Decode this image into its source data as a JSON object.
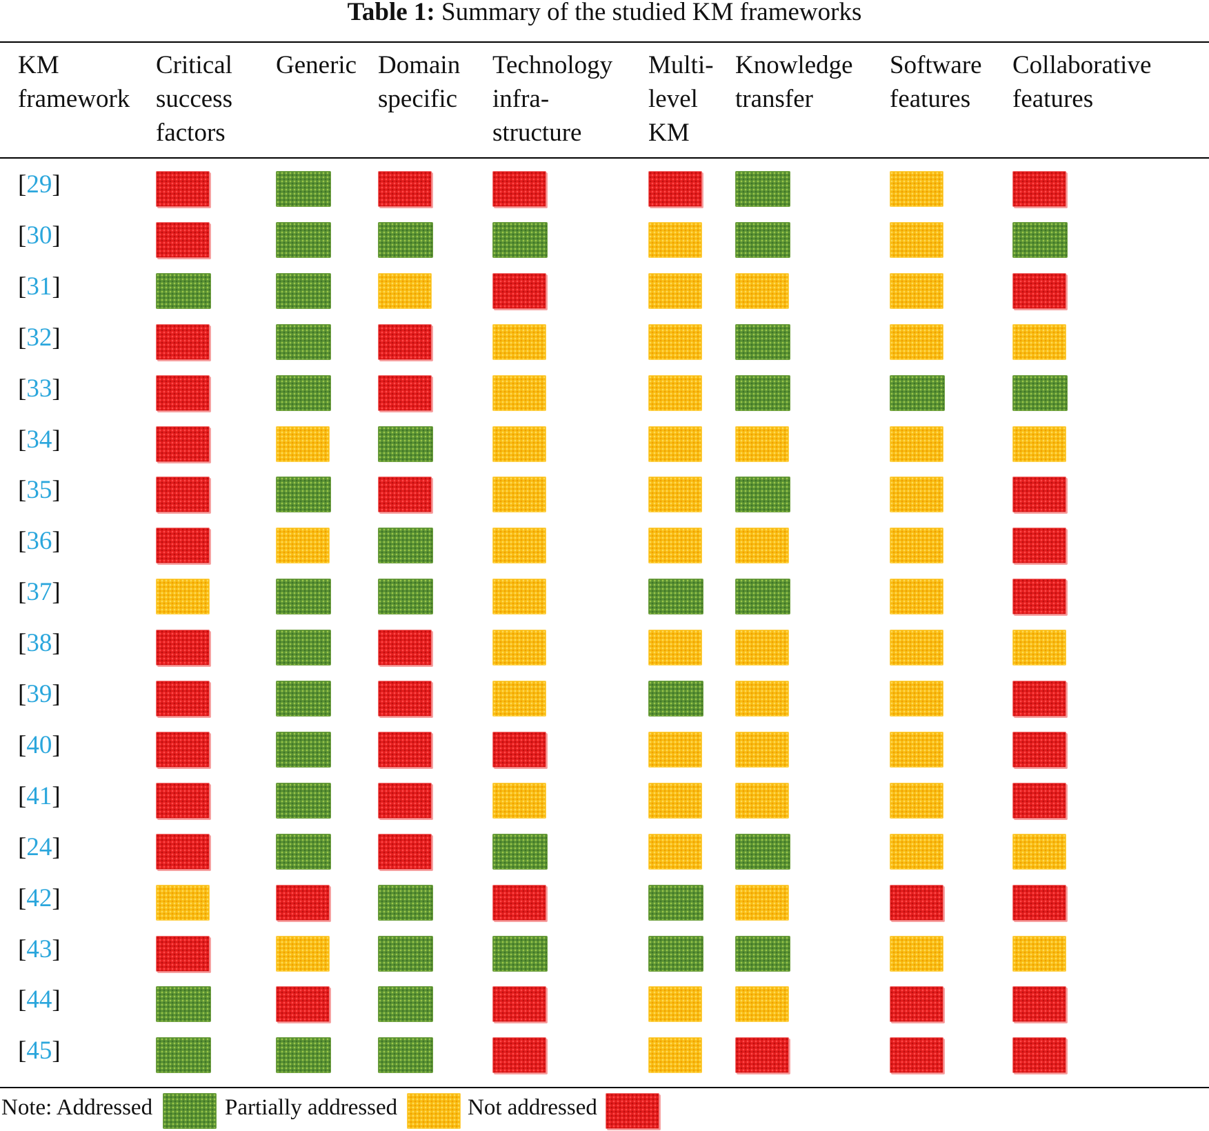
{
  "caption": {
    "label": "Table 1:",
    "text": "Summary of the studied KM frameworks"
  },
  "headers": [
    [
      "KM",
      "framework"
    ],
    [
      "Critical",
      "success",
      "factors"
    ],
    [
      "Generic"
    ],
    [
      "Domain",
      "specific"
    ],
    [
      "Technology",
      "infra-",
      "structure"
    ],
    [
      "Multi-",
      "level",
      "KM"
    ],
    [
      "Knowledge",
      "transfer"
    ],
    [
      "Software",
      "features"
    ],
    [
      "Collaborative",
      "features"
    ]
  ],
  "status_legend": {
    "A": "Addressed",
    "P": "Partially addressed",
    "N": "Not addressed"
  },
  "colors": {
    "addressed": "#5a9234",
    "partially_addressed": "#f9bd13",
    "not_addressed": "#e41d1d",
    "ref_link": "#2aa6dc"
  },
  "rows": [
    {
      "ref": "29",
      "cells": [
        "N",
        "A",
        "N",
        "N",
        "N",
        "A",
        "P",
        "N"
      ]
    },
    {
      "ref": "30",
      "cells": [
        "N",
        "A",
        "A",
        "A",
        "P",
        "A",
        "P",
        "A"
      ]
    },
    {
      "ref": "31",
      "cells": [
        "A",
        "A",
        "P",
        "N",
        "P",
        "P",
        "P",
        "N"
      ]
    },
    {
      "ref": "32",
      "cells": [
        "N",
        "A",
        "N",
        "P",
        "P",
        "A",
        "P",
        "P"
      ]
    },
    {
      "ref": "33",
      "cells": [
        "N",
        "A",
        "N",
        "P",
        "P",
        "A",
        "A",
        "A"
      ]
    },
    {
      "ref": "34",
      "cells": [
        "N",
        "P",
        "A",
        "P",
        "P",
        "P",
        "P",
        "P"
      ]
    },
    {
      "ref": "35",
      "cells": [
        "N",
        "A",
        "N",
        "P",
        "P",
        "A",
        "P",
        "N"
      ]
    },
    {
      "ref": "36",
      "cells": [
        "N",
        "P",
        "A",
        "P",
        "P",
        "P",
        "P",
        "N"
      ]
    },
    {
      "ref": "37",
      "cells": [
        "P",
        "A",
        "A",
        "P",
        "A",
        "A",
        "P",
        "N"
      ]
    },
    {
      "ref": "38",
      "cells": [
        "N",
        "A",
        "N",
        "P",
        "P",
        "P",
        "P",
        "P"
      ]
    },
    {
      "ref": "39",
      "cells": [
        "N",
        "A",
        "N",
        "P",
        "A",
        "P",
        "P",
        "N"
      ]
    },
    {
      "ref": "40",
      "cells": [
        "N",
        "A",
        "N",
        "N",
        "P",
        "P",
        "P",
        "N"
      ]
    },
    {
      "ref": "41",
      "cells": [
        "N",
        "A",
        "N",
        "P",
        "P",
        "P",
        "P",
        "N"
      ]
    },
    {
      "ref": "24",
      "cells": [
        "N",
        "A",
        "N",
        "A",
        "P",
        "A",
        "P",
        "P"
      ]
    },
    {
      "ref": "42",
      "cells": [
        "P",
        "N",
        "A",
        "N",
        "A",
        "P",
        "N",
        "N"
      ]
    },
    {
      "ref": "43",
      "cells": [
        "N",
        "P",
        "A",
        "A",
        "A",
        "A",
        "P",
        "P"
      ]
    },
    {
      "ref": "44",
      "cells": [
        "A",
        "N",
        "A",
        "N",
        "P",
        "P",
        "N",
        "N"
      ]
    },
    {
      "ref": "45",
      "cells": [
        "A",
        "A",
        "A",
        "N",
        "P",
        "N",
        "N",
        "N"
      ]
    }
  ],
  "note": {
    "prefix": "Note:",
    "addressed_label": "Addressed",
    "partial_label": "Partially addressed",
    "not_label": "Not addressed"
  }
}
